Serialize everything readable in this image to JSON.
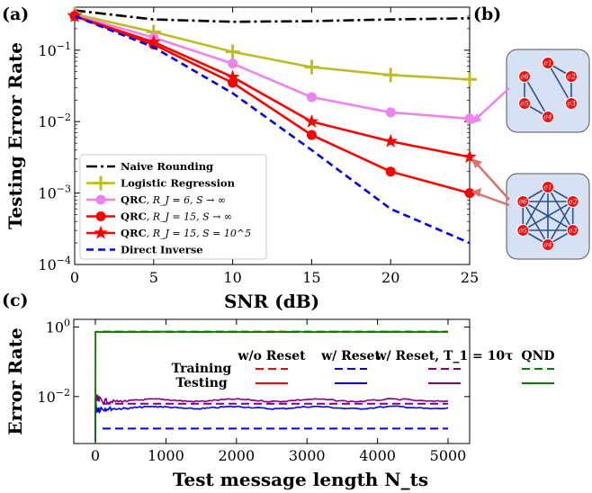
{
  "figure": {
    "panel_a": "(a)",
    "panel_b": "(b)",
    "panel_c": "(c)"
  },
  "chart_data": [
    {
      "type": "line",
      "panel": "(a)",
      "xlabel": "SNR (dB)",
      "ylabel": "Testing Error Rate",
      "xlim": [
        0,
        25
      ],
      "ylim": [
        0.0001,
        0.4
      ],
      "yscale": "log",
      "grid": false,
      "legend_position": "bottom-left",
      "x_ticks": [
        "0",
        "5",
        "10",
        "15",
        "20",
        "25"
      ],
      "y_ticks": [
        "10^{-4}",
        "10^{-3}",
        "10^{-2}",
        "10^{-1}"
      ],
      "series": [
        {
          "name": "Naive Rounding",
          "color": "#000000",
          "style": "dash-dot",
          "marker": "none",
          "x": [
            0,
            5,
            10,
            15,
            20,
            25
          ],
          "y": [
            0.36,
            0.27,
            0.25,
            0.255,
            0.27,
            0.28
          ]
        },
        {
          "name": "Logistic Regression",
          "color": "#bcbd22",
          "style": "solid",
          "marker": "plus",
          "x": [
            0,
            5,
            10,
            15,
            20,
            25
          ],
          "y": [
            0.32,
            0.18,
            0.095,
            0.058,
            0.045,
            0.039
          ]
        },
        {
          "name": "QRC, R_J = 6, S → ∞",
          "color": "#ee82ee",
          "style": "solid",
          "marker": "circle",
          "x": [
            0,
            5,
            10,
            15,
            20,
            25
          ],
          "y": [
            0.31,
            0.15,
            0.065,
            0.022,
            0.0135,
            0.011
          ]
        },
        {
          "name": "QRC, R_J = 15, S → ∞",
          "color": "#ff0000",
          "style": "solid",
          "marker": "circle",
          "x": [
            0,
            5,
            10,
            15,
            20,
            25
          ],
          "y": [
            0.3,
            0.12,
            0.035,
            0.0065,
            0.002,
            0.001
          ]
        },
        {
          "name": "QRC, R_J = 15, S = 10^5",
          "color": "#ff0000",
          "style": "solid",
          "marker": "star",
          "x": [
            0,
            5,
            10,
            15,
            20,
            25
          ],
          "y": [
            0.3,
            0.13,
            0.042,
            0.01,
            0.0053,
            0.0032
          ]
        },
        {
          "name": "Direct Inverse",
          "color": "#0000ee",
          "style": "dashed",
          "marker": "none",
          "x": [
            0,
            5,
            10,
            15,
            20,
            25
          ],
          "y": [
            0.3,
            0.11,
            0.025,
            0.004,
            0.0006,
            0.0002
          ]
        }
      ],
      "legend_items": [
        {
          "main": "Naive Rounding",
          "sub": ""
        },
        {
          "main": "Logistic Regression",
          "sub": ""
        },
        {
          "main": "QRC",
          "sub": ", R_J = 6, S → ∞"
        },
        {
          "main": "QRC",
          "sub": ", R_J = 15, S → ∞"
        },
        {
          "main": "QRC",
          "sub": ", R_J = 15, S = 10^5"
        },
        {
          "main": "Direct Inverse",
          "sub": ""
        }
      ]
    },
    {
      "type": "diagram",
      "panel": "(b)",
      "graphs": [
        {
          "nodes": [
            "σ1",
            "σ2",
            "σ3",
            "σ4",
            "σ5",
            "σ6"
          ],
          "connectivity": "sparse",
          "pointer_color": "#ee82ee"
        },
        {
          "nodes": [
            "σ1",
            "σ2",
            "σ3",
            "σ4",
            "σ5",
            "σ6"
          ],
          "connectivity": "full",
          "pointer_color": "#e07070"
        }
      ]
    },
    {
      "type": "line",
      "panel": "(c)",
      "xlabel": "Test message length N_ts",
      "ylabel": "Error Rate",
      "xlim": [
        0,
        5000
      ],
      "yscale": "log",
      "grid": false,
      "legend_position": "top-center",
      "x_ticks": [
        "0",
        "1000",
        "2000",
        "3000",
        "4000",
        "5000"
      ],
      "y_ticks": [
        "10^{-2}",
        "10^{0}"
      ],
      "column_headers": [
        "w/o Reset",
        "w/ Reset",
        "w/ Reset, T_1 = 10τ",
        "QND"
      ],
      "row_headers": [
        "Training",
        "Testing"
      ],
      "series": [
        {
          "name": "w/o Reset Training",
          "color": "#ff0000",
          "style": "dashed",
          "level": 0.72
        },
        {
          "name": "w/o Reset Testing",
          "color": "#ff0000",
          "style": "solid",
          "level": 0.72
        },
        {
          "name": "w/ Reset Training",
          "color": "#0000ee",
          "style": "dashed",
          "level": 0.0012
        },
        {
          "name": "w/ Reset Testing",
          "color": "#0000ee",
          "style": "solid",
          "level": 0.0048
        },
        {
          "name": "w/ Reset, T1 = 10τ Training",
          "color": "#800080",
          "style": "dashed",
          "level": 0.0062
        },
        {
          "name": "w/ Reset, T1 = 10τ Testing",
          "color": "#800080",
          "style": "solid",
          "level": 0.0078
        },
        {
          "name": "QND Training",
          "color": "#008000",
          "style": "dashed",
          "level": 0.74
        },
        {
          "name": "QND Testing",
          "color": "#008000",
          "style": "solid",
          "level": 0.73
        }
      ]
    }
  ]
}
